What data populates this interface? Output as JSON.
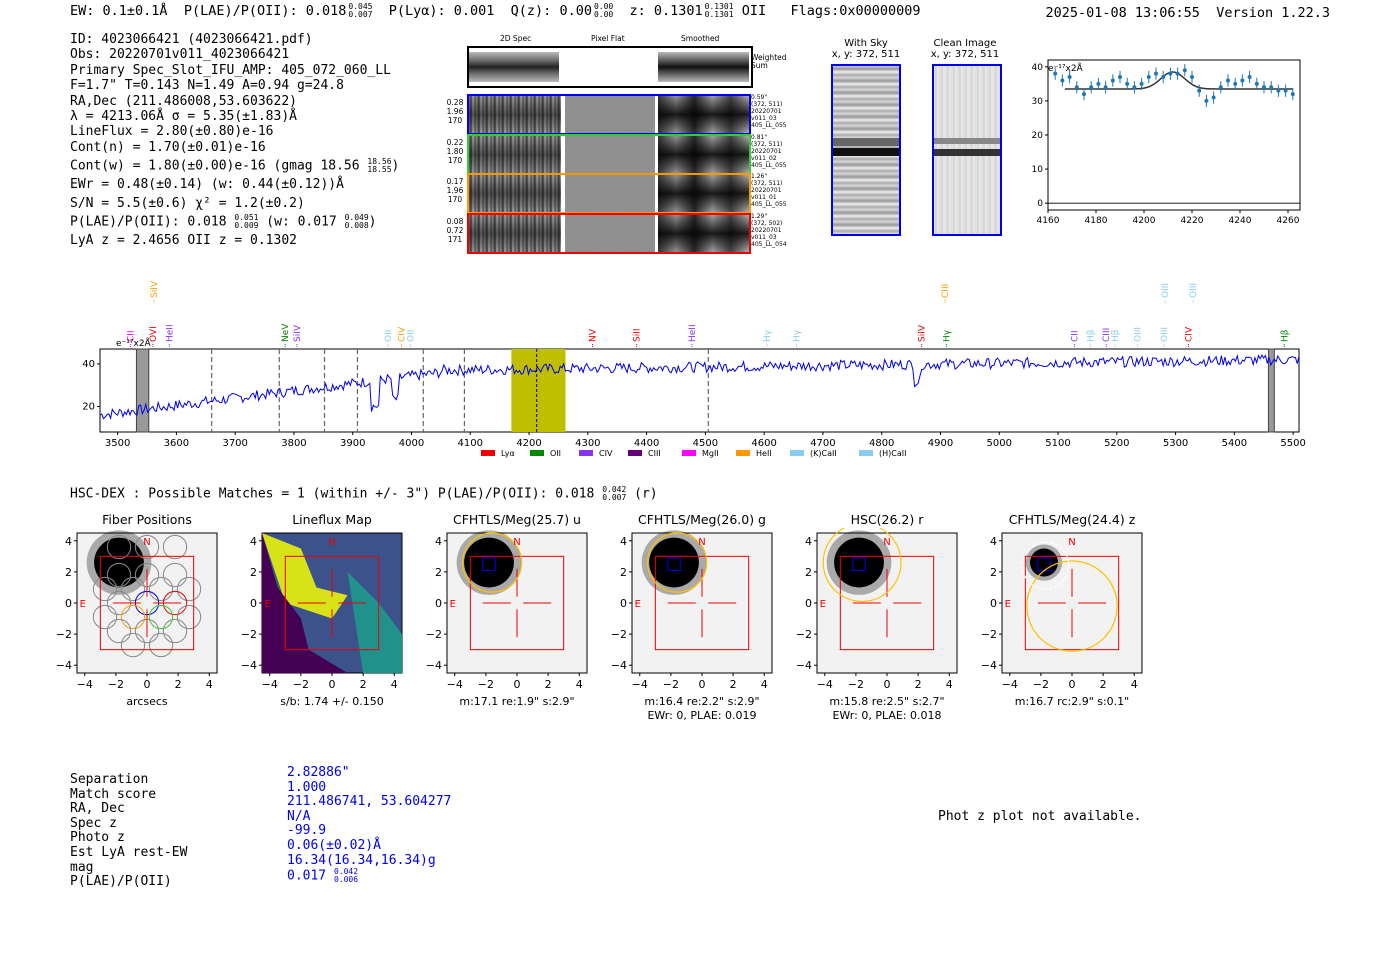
{
  "header": {
    "ew": "EW: 0.1±0.1Å",
    "plae_label": "P(LAE)/P(OII): 0.018",
    "plae_hi": "0.045",
    "plae_lo": "0.007",
    "plya": "P(Lyα): 0.001",
    "qz": "Q(z): 0.00",
    "qz_hi": "0.00",
    "qz_lo": "0.00",
    "z": "z: 0.1301",
    "z_hi": "0.1301",
    "z_lo": "0.1301",
    "z_line": "OII",
    "flags": "Flags:0x00000009",
    "datetime": "2025-01-08 13:06:55",
    "version": "Version 1.22.3"
  },
  "info": {
    "id": "ID: 4023066421 (4023066421.pdf)",
    "obs": "Obs: 20220701v011_4023066421",
    "primary": "Primary Spec_Slot_IFU_AMP: 405_072_060_LL",
    "fitpar": "F=1.7\"  T=0.143  N=1.49  A=0.94  g=24.8",
    "radec": "RA,Dec (211.486008,53.603622)",
    "lambda": "λ = 4213.06Å  σ = 5.35(±1.83)Å",
    "lineflux": "LineFlux = 2.80(±0.80)e-16",
    "contn": "Cont(n) = 1.70(±0.01)e-16",
    "contw": "Cont(w) = 1.80(±0.00)e-16 (gmag 18.56",
    "contw_hi": "18.56",
    "contw_lo": "18.55",
    "ewr": "EWr = 0.48(±0.14) (w: 0.44(±0.12))Å",
    "sn": "S/N = 5.5(±0.6)  χ² = 1.2(±0.2)",
    "plae": "P(LAE)/P(OII): 0.018",
    "plae_hi": "0.051",
    "plae_lo": "0.009",
    "plae_w": "(w: 0.017",
    "plae_w_hi": "0.049",
    "plae_w_lo": "0.008",
    "lyaz": "LyA z = 2.4656  OII z = 0.1302"
  },
  "cutouts": {
    "col_titles": [
      "2D Spec",
      "Pixel Flat",
      "Smoothed"
    ],
    "weighted_sum": "Weighted Sum",
    "rows": [
      {
        "left": [
          "0.28",
          "1.96",
          "170"
        ],
        "right": [
          "0.59\"",
          "(372, 511)",
          "20220701",
          "v011_03",
          "405_LL_055"
        ],
        "color": "#0000ee"
      },
      {
        "left": [
          "0.22",
          "1.80",
          "170"
        ],
        "right": [
          "0.81\"",
          "(372, 511)",
          "20220701",
          "v011_02",
          "405_LL_055"
        ],
        "color": "#33cc33"
      },
      {
        "left": [
          "0.17",
          "1.96",
          "170"
        ],
        "right": [
          "1.26\"",
          "(372, 511)",
          "20220701",
          "v011_01",
          "405_LL_055"
        ],
        "color": "#ff9900"
      },
      {
        "left": [
          "0.08",
          "0.72",
          "171"
        ],
        "right": [
          "1.29\"",
          "(372, 502)",
          "20220701",
          "v011_03",
          "405_LL_054"
        ],
        "color": "#ee0000"
      }
    ]
  },
  "sky": {
    "with_sky": "With Sky",
    "with_sky_xy": "x, y: 372, 511",
    "clean": "Clean Image",
    "clean_xy": "x, y: 372, 511"
  },
  "zoom_chart": {
    "unit_label": "e⁻¹⁷x2Å",
    "xticks": [
      "4160",
      "4180",
      "4200",
      "4220",
      "4240",
      "4260"
    ],
    "yticks": [
      "0",
      "10",
      "20",
      "30",
      "40"
    ]
  },
  "full_chart": {
    "unit_label": "e⁻¹⁷x2Å",
    "xticks": [
      "3500",
      "3600",
      "3700",
      "3800",
      "3900",
      "4000",
      "4100",
      "4200",
      "4300",
      "4400",
      "4500",
      "4600",
      "4700",
      "4800",
      "4900",
      "5000",
      "5100",
      "5200",
      "5300",
      "5400",
      "5500"
    ],
    "yticks": [
      "20",
      "40"
    ],
    "legend": [
      {
        "name": "Lyα",
        "color": "#ee0000"
      },
      {
        "name": "OII",
        "color": "#008800"
      },
      {
        "name": "CIV",
        "color": "#8833ee"
      },
      {
        "name": "CIII",
        "color": "#660077"
      },
      {
        "name": "MgII",
        "color": "#ff00ff"
      },
      {
        "name": "HeII",
        "color": "#ff9900"
      },
      {
        "name": "(K)CaII",
        "color": "#88ccee"
      },
      {
        "name": "(H)CaII",
        "color": "#88ccee"
      }
    ],
    "lines": [
      {
        "label": "CII",
        "color": "#ff00ff",
        "x": 3522,
        "row": 0
      },
      {
        "label": "SiIV",
        "color": "#ff9900",
        "x": 3562,
        "row": 1
      },
      {
        "label": "OVI",
        "color": "#ee0000",
        "x": 3560,
        "row": 0
      },
      {
        "label": "HeII",
        "color": "#8833ee",
        "x": 3588,
        "row": 0
      },
      {
        "label": "NeV",
        "color": "#008800",
        "x": 3785,
        "row": 0
      },
      {
        "label": "SiIV",
        "color": "#8833ee",
        "x": 3805,
        "row": 0
      },
      {
        "label": "OII",
        "color": "#88ccee",
        "x": 3960,
        "row": 0
      },
      {
        "label": "CIV",
        "color": "#ff9900",
        "x": 3983,
        "row": 0
      },
      {
        "label": "OII",
        "color": "#88ccee",
        "x": 3998,
        "row": 0
      },
      {
        "label": "NV",
        "color": "#ee0000",
        "x": 4308,
        "row": 0
      },
      {
        "label": "SiII",
        "color": "#ee0000",
        "x": 4383,
        "row": 0
      },
      {
        "label": "HeII",
        "color": "#8833ee",
        "x": 4477,
        "row": 0
      },
      {
        "label": "Hγ",
        "color": "#88ccee",
        "x": 4605,
        "row": 0
      },
      {
        "label": "Hγ",
        "color": "#88ccee",
        "x": 4655,
        "row": 0
      },
      {
        "label": "SiIV",
        "color": "#ee0000",
        "x": 4868,
        "row": 0
      },
      {
        "label": "CIII",
        "color": "#ff9900",
        "x": 4908,
        "row": 1
      },
      {
        "label": "Hγ",
        "color": "#008800",
        "x": 4910,
        "row": 0
      },
      {
        "label": "CII",
        "color": "#8833ee",
        "x": 5128,
        "row": 0
      },
      {
        "label": "Hβ",
        "color": "#88ccee",
        "x": 5155,
        "row": 0
      },
      {
        "label": "CIII",
        "color": "#8833ee",
        "x": 5182,
        "row": 0
      },
      {
        "label": "Hβ",
        "color": "#88ccee",
        "x": 5197,
        "row": 0
      },
      {
        "label": "OIII",
        "color": "#88ccee",
        "x": 5235,
        "row": 0
      },
      {
        "label": "OIII",
        "color": "#88ccee",
        "x": 5280,
        "row": 0
      },
      {
        "label": "OIII",
        "color": "#88ccee",
        "x": 5282,
        "row": 1
      },
      {
        "label": "CIV",
        "color": "#ee0000",
        "x": 5322,
        "row": 0
      },
      {
        "label": "OIII",
        "color": "#88ccee",
        "x": 5330,
        "row": 1
      },
      {
        "label": "Hβ",
        "color": "#008800",
        "x": 5485,
        "row": 0
      }
    ]
  },
  "chart_data": [
    {
      "type": "scatter",
      "title": "",
      "xlabel": "",
      "ylabel": "",
      "xlim": [
        4160,
        4265
      ],
      "ylim": [
        -2,
        42
      ],
      "x": [
        4163,
        4166,
        4169,
        4172,
        4175,
        4178,
        4181,
        4184,
        4187,
        4190,
        4193,
        4196,
        4199,
        4202,
        4205,
        4208,
        4211,
        4214,
        4217,
        4220,
        4223,
        4226,
        4229,
        4232,
        4235,
        4238,
        4241,
        4244,
        4247,
        4250,
        4253,
        4256,
        4259,
        4262
      ],
      "y": [
        38,
        36,
        37,
        34,
        32,
        34,
        35,
        34,
        36,
        37,
        35,
        34,
        35,
        37,
        38,
        37,
        38,
        38,
        39,
        37,
        33,
        30,
        31,
        34,
        36,
        35,
        36,
        37,
        35,
        34,
        34,
        33,
        33,
        32
      ],
      "fit_baseline": 33.5,
      "fit_peak_x": 4212,
      "fit_peak_y": 38.5
    },
    {
      "type": "line",
      "title": "",
      "xlabel": "",
      "ylabel": "",
      "xlim": [
        3470,
        5510
      ],
      "ylim": [
        8,
        47
      ],
      "highlight_x": [
        4170,
        4262
      ],
      "line_center": 4213,
      "dashed_x": [
        3660,
        3775,
        3852,
        3908,
        4020,
        4090,
        4505
      ],
      "masked_x": [
        [
          3532,
          3553
        ],
        [
          5458,
          5468
        ]
      ]
    }
  ],
  "matches": {
    "heading": "HSC-DEX : Possible Matches = 1 (within +/- 3\")  P(LAE)/P(OII): 0.018",
    "hi": "0.042",
    "lo": "0.007",
    "band": "(r)"
  },
  "panels": [
    {
      "title": "Fiber Positions",
      "cap1": "arcsecs",
      "cap2": ""
    },
    {
      "title": "Lineflux Map",
      "cap1": "s/b: 1.74 +/- 0.150",
      "cap2": ""
    },
    {
      "title": "CFHTLS/Meg(25.7) u",
      "cap1": "m:17.1  re:1.9\"  s:2.9\"",
      "cap2": ""
    },
    {
      "title": "CFHTLS/Meg(26.0) g",
      "cap1": "m:16.4  re:2.2\"  s:2.9\"",
      "cap2": "EWr: 0, PLAE: 0.019"
    },
    {
      "title": "HSC(26.2) r",
      "cap1": "m:15.8  re:2.5\"  s:2.7\"",
      "cap2": "EWr: 0, PLAE: 0.018"
    },
    {
      "title": "CFHTLS/Meg(24.4) z",
      "cap1": "m:16.7 rc:2.9\"  s:0.1\"",
      "cap2": ""
    }
  ],
  "panel_ticks": [
    "4",
    "2",
    "0",
    "−2",
    "−4"
  ],
  "panel_xticks": [
    "−4",
    "−2",
    "0",
    "2",
    "4"
  ],
  "compass": {
    "n": "N",
    "e": "E"
  },
  "stats": {
    "labels": [
      "Separation",
      "Match score",
      "RA, Dec",
      "Spec z",
      "Photo z",
      "Est LyA rest-EW",
      "mag",
      "P(LAE)/P(OII)"
    ],
    "values": [
      "2.82886\"",
      "1.000",
      "211.486741, 53.604277",
      "N/A",
      "-99.9",
      "0.06(±0.02)Å",
      "16.34(16.34,16.34)g",
      "0.017"
    ],
    "plae_hi": "0.042",
    "plae_lo": "0.006"
  },
  "photz_note": "Phot z plot not available."
}
